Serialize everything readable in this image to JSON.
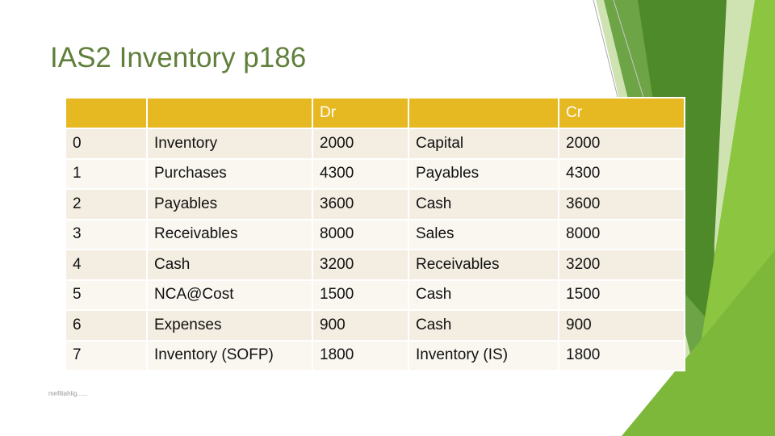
{
  "slide": {
    "title": "IAS2 Inventory p186",
    "footer": "mefiliahlig......"
  },
  "table": {
    "header": [
      "",
      "",
      "Dr",
      "",
      "Cr"
    ],
    "rows": [
      [
        "0",
        "Inventory",
        "2000",
        "Capital",
        "2000"
      ],
      [
        "1",
        "Purchases",
        "4300",
        "Payables",
        "4300"
      ],
      [
        "2",
        "Payables",
        "3600",
        "Cash",
        "3600"
      ],
      [
        "3",
        "Receivables",
        "8000",
        "Sales",
        "8000"
      ],
      [
        "4",
        "Cash",
        "3200",
        "Receivables",
        "3200"
      ],
      [
        "5",
        "NCA@Cost",
        "1500",
        "Cash",
        "1500"
      ],
      [
        "6",
        "Expenses",
        "900",
        "Cash",
        "900"
      ],
      [
        "7",
        "Inventory (SOFP)",
        "1800",
        "Inventory (IS)",
        "1800"
      ]
    ]
  },
  "colors": {
    "header_fill": "#e6b923",
    "row_fill_a": "#f4ede1",
    "row_fill_b": "#faf7f1",
    "title_color": "#5f7f3a",
    "deco_green_dark": "#4e8a2a",
    "deco_green_light": "#8cc540"
  }
}
